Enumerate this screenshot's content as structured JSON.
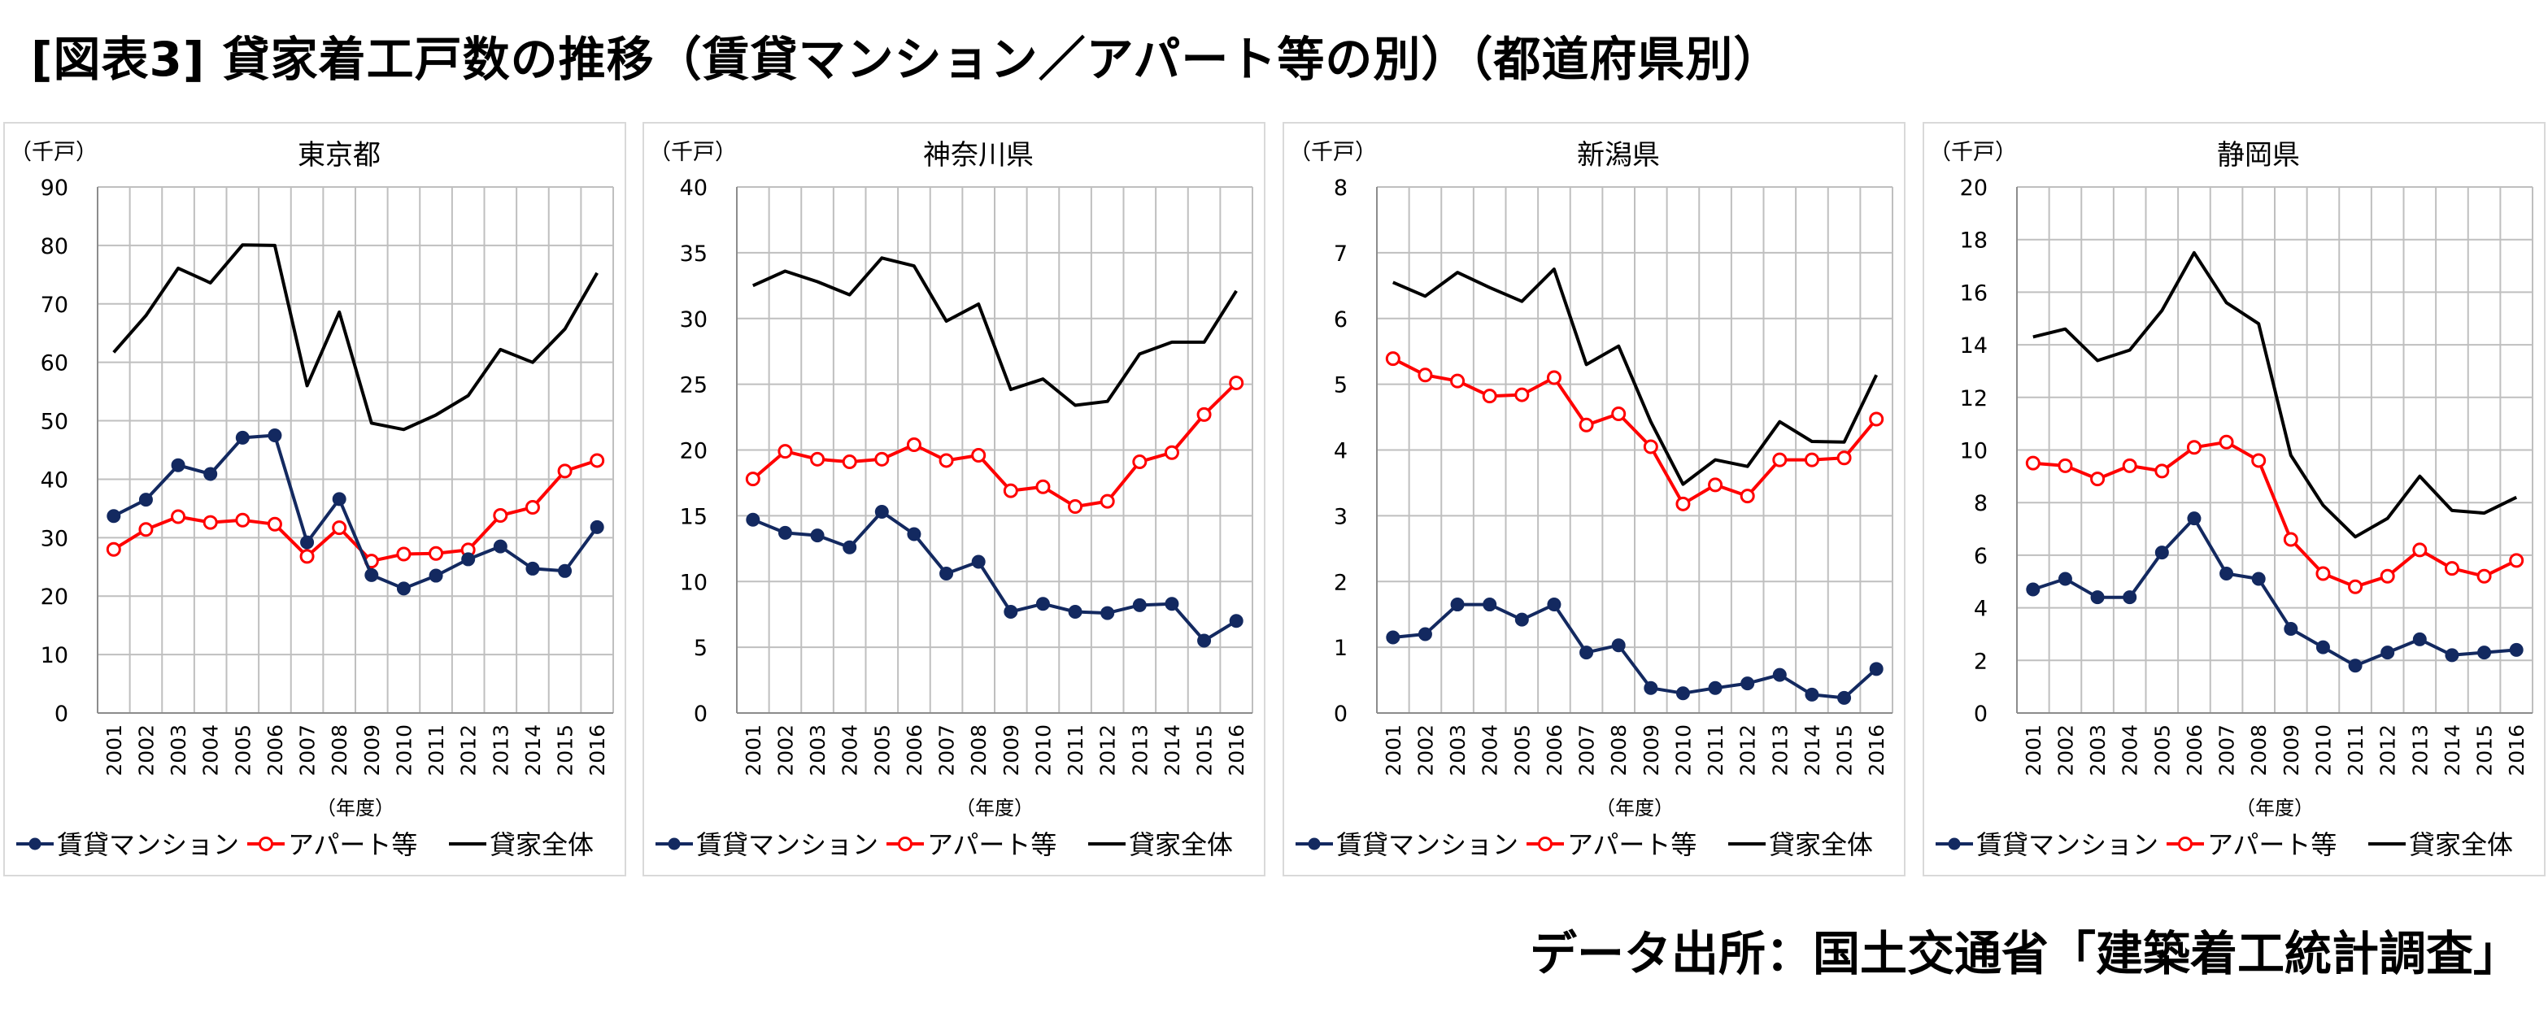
{
  "title": "[図表3] 貸家着工戸数の推移（賃貸マンション／アパート等の別）（都道府県別）",
  "source": "データ出所：国土交通省「建築着工統計調査」",
  "colors": {
    "mansion": "#132960",
    "apart": "#ff0000",
    "total": "#000000",
    "grid": "#bfbfbf"
  },
  "chart_data": [
    {
      "type": "line",
      "title": "東京都",
      "unit_label": "（千戸）",
      "xlabel": "（年度）",
      "x": [
        "2001",
        "2002",
        "2003",
        "2004",
        "2005",
        "2006",
        "2007",
        "2008",
        "2009",
        "2010",
        "2011",
        "2012",
        "2013",
        "2014",
        "2015",
        "2016"
      ],
      "ylim": [
        0,
        90
      ],
      "yticks": [
        0,
        10,
        20,
        30,
        40,
        50,
        60,
        70,
        80,
        90
      ],
      "legend_position": "bottom",
      "series": [
        {
          "name": "賃貸マンション",
          "marker": "filled",
          "values": [
            33.7,
            36.5,
            42.4,
            40.9,
            47.1,
            47.5,
            29.2,
            36.6,
            23.6,
            21.3,
            23.5,
            26.3,
            28.5,
            24.7,
            24.3,
            31.8
          ]
        },
        {
          "name": "アパート等",
          "marker": "hollow",
          "values": [
            28.0,
            31.4,
            33.6,
            32.6,
            33.0,
            32.3,
            26.8,
            31.7,
            26.0,
            27.2,
            27.3,
            27.9,
            33.8,
            35.2,
            41.4,
            43.2
          ]
        },
        {
          "name": "貸家全体",
          "marker": "none",
          "values": [
            61.7,
            68.0,
            76.1,
            73.6,
            80.1,
            80.0,
            56.0,
            68.6,
            49.6,
            48.5,
            51.0,
            54.3,
            62.2,
            60.0,
            65.7,
            75.3
          ]
        }
      ]
    },
    {
      "type": "line",
      "title": "神奈川県",
      "unit_label": "（千戸）",
      "xlabel": "（年度）",
      "x": [
        "2001",
        "2002",
        "2003",
        "2004",
        "2005",
        "2006",
        "2007",
        "2008",
        "2009",
        "2010",
        "2011",
        "2012",
        "2013",
        "2014",
        "2015",
        "2016"
      ],
      "ylim": [
        0,
        40
      ],
      "yticks": [
        0,
        5,
        10,
        15,
        20,
        25,
        30,
        35,
        40
      ],
      "legend_position": "bottom",
      "series": [
        {
          "name": "賃貸マンション",
          "marker": "filled",
          "values": [
            14.7,
            13.7,
            13.5,
            12.6,
            15.3,
            13.6,
            10.6,
            11.5,
            7.7,
            8.3,
            7.7,
            7.6,
            8.2,
            8.3,
            5.5,
            7.0
          ]
        },
        {
          "name": "アパート等",
          "marker": "hollow",
          "values": [
            17.8,
            19.9,
            19.3,
            19.1,
            19.3,
            20.4,
            19.2,
            19.6,
            16.9,
            17.2,
            15.7,
            16.1,
            19.1,
            19.8,
            22.7,
            25.1
          ]
        },
        {
          "name": "貸家全体",
          "marker": "none",
          "values": [
            32.5,
            33.6,
            32.8,
            31.8,
            34.6,
            34.0,
            29.8,
            31.1,
            24.6,
            25.4,
            23.4,
            23.7,
            27.3,
            28.2,
            28.2,
            32.1
          ]
        }
      ]
    },
    {
      "type": "line",
      "title": "新潟県",
      "unit_label": "（千戸）",
      "xlabel": "（年度）",
      "x": [
        "2001",
        "2002",
        "2003",
        "2004",
        "2005",
        "2006",
        "2007",
        "2008",
        "2009",
        "2010",
        "2011",
        "2012",
        "2013",
        "2014",
        "2015",
        "2016"
      ],
      "ylim": [
        0,
        8
      ],
      "yticks": [
        0,
        1,
        2,
        3,
        4,
        5,
        6,
        7,
        8
      ],
      "legend_position": "bottom",
      "series": [
        {
          "name": "賃貸マンション",
          "marker": "filled",
          "values": [
            1.15,
            1.2,
            1.65,
            1.65,
            1.42,
            1.65,
            0.92,
            1.03,
            0.38,
            0.3,
            0.38,
            0.45,
            0.58,
            0.28,
            0.23,
            0.67
          ]
        },
        {
          "name": "アパート等",
          "marker": "hollow",
          "values": [
            5.39,
            5.14,
            5.05,
            4.82,
            4.84,
            5.1,
            4.38,
            4.55,
            4.05,
            3.18,
            3.47,
            3.3,
            3.85,
            3.85,
            3.88,
            4.47
          ]
        },
        {
          "name": "貸家全体",
          "marker": "none",
          "values": [
            6.55,
            6.34,
            6.7,
            6.47,
            6.26,
            6.75,
            5.3,
            5.58,
            4.43,
            3.48,
            3.85,
            3.75,
            4.43,
            4.13,
            4.12,
            5.14
          ]
        }
      ]
    },
    {
      "type": "line",
      "title": "静岡県",
      "unit_label": "（千戸）",
      "xlabel": "（年度）",
      "x": [
        "2001",
        "2002",
        "2003",
        "2004",
        "2005",
        "2006",
        "2007",
        "2008",
        "2009",
        "2010",
        "2011",
        "2012",
        "2013",
        "2014",
        "2015",
        "2016"
      ],
      "ylim": [
        0,
        20
      ],
      "yticks": [
        0,
        2,
        4,
        6,
        8,
        10,
        12,
        14,
        16,
        18,
        20
      ],
      "legend_position": "bottom",
      "series": [
        {
          "name": "賃貸マンション",
          "marker": "filled",
          "values": [
            4.7,
            5.1,
            4.4,
            4.4,
            6.1,
            7.4,
            5.3,
            5.1,
            3.2,
            2.5,
            1.8,
            2.3,
            2.8,
            2.2,
            2.3,
            2.4
          ]
        },
        {
          "name": "アパート等",
          "marker": "hollow",
          "values": [
            9.5,
            9.4,
            8.9,
            9.4,
            9.2,
            10.1,
            10.3,
            9.6,
            6.6,
            5.3,
            4.8,
            5.2,
            6.2,
            5.5,
            5.2,
            5.8
          ]
        },
        {
          "name": "貸家全体",
          "marker": "none",
          "values": [
            14.3,
            14.6,
            13.4,
            13.8,
            15.3,
            17.5,
            15.6,
            14.8,
            9.8,
            7.9,
            6.7,
            7.4,
            9.0,
            7.7,
            7.6,
            8.2
          ]
        }
      ]
    }
  ]
}
